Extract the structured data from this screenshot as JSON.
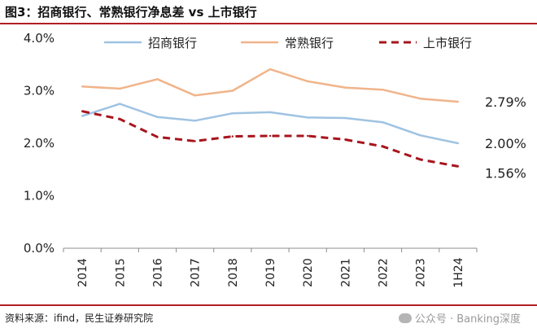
{
  "header": {
    "title": "图3：招商银行、常熟银行净息差  vs  上市银行"
  },
  "footer": {
    "source": "资料来源：ifind，民生证券研究院",
    "watermark": "公众号 · Banking深度"
  },
  "colors": {
    "accent_rule": "#b11f24",
    "series": [
      "#9fc3e2",
      "#f0b48a",
      "#a8141d"
    ]
  },
  "chart_data": {
    "type": "line",
    "x": [
      "2014",
      "2015",
      "2016",
      "2017",
      "2018",
      "2019",
      "2020",
      "2021",
      "2022",
      "2023",
      "1H24"
    ],
    "ylim": [
      0,
      4
    ],
    "yticks": [
      "0.0%",
      "1.0%",
      "2.0%",
      "3.0%",
      "4.0%"
    ],
    "ytick_values": [
      0,
      1,
      2,
      3,
      4
    ],
    "legend_position": "top",
    "grid": false,
    "series": [
      {
        "name": "招商银行",
        "style": "solid",
        "values": [
          2.52,
          2.75,
          2.5,
          2.43,
          2.57,
          2.59,
          2.49,
          2.48,
          2.4,
          2.15,
          2.0
        ]
      },
      {
        "name": "常熟银行",
        "style": "solid",
        "values": [
          3.08,
          3.04,
          3.22,
          2.91,
          3.0,
          3.41,
          3.18,
          3.06,
          3.02,
          2.85,
          2.79
        ]
      },
      {
        "name": "上市银行",
        "style": "dashed",
        "values": [
          2.61,
          2.46,
          2.12,
          2.04,
          2.13,
          2.14,
          2.14,
          2.07,
          1.94,
          1.69,
          1.56
        ]
      }
    ],
    "end_labels": [
      "2.00%",
      "2.79%",
      "1.56%"
    ]
  }
}
